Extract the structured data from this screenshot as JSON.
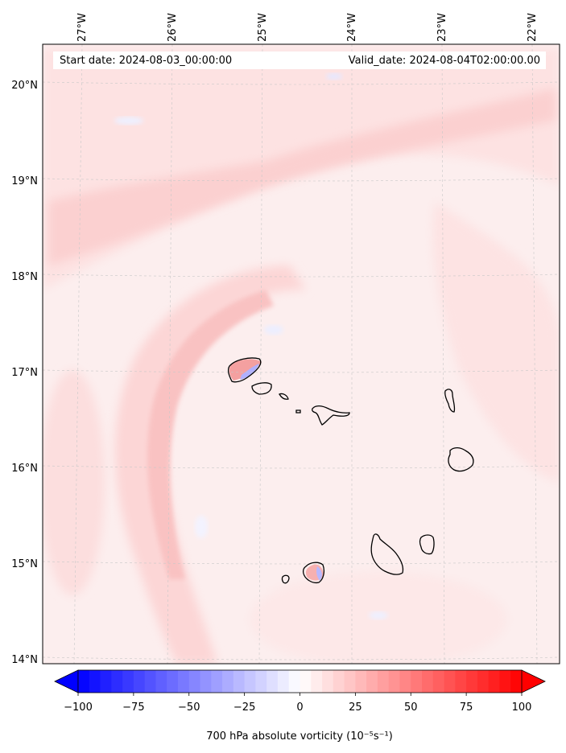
{
  "map": {
    "start_date": "Start date: 2024-08-03_00:00:00",
    "valid_date": "Valid_date: 2024-08-04T02:00:00.00",
    "lon_labels": [
      "27°W",
      "26°W",
      "25°W",
      "24°W",
      "23°W",
      "22°W"
    ],
    "lat_labels": [
      "20°N",
      "19°N",
      "18°N",
      "17°N",
      "16°N",
      "15°N",
      "14°N"
    ],
    "variable": "700 hPa absolute vorticity",
    "units_text": "(10⁻⁵s⁻¹)",
    "gridlines": true,
    "colormap": "bwr",
    "colors": {
      "negative": "#0000ff",
      "zero": "#ffffff",
      "positive": "#ff0000",
      "coastline": "#000000"
    }
  },
  "colorbar": {
    "min": -100,
    "max": 100,
    "tick_labels": [
      "−100",
      "−75",
      "−50",
      "−25",
      "0",
      "25",
      "50",
      "75",
      "100"
    ],
    "extend": "both",
    "orientation": "horizontal"
  }
}
